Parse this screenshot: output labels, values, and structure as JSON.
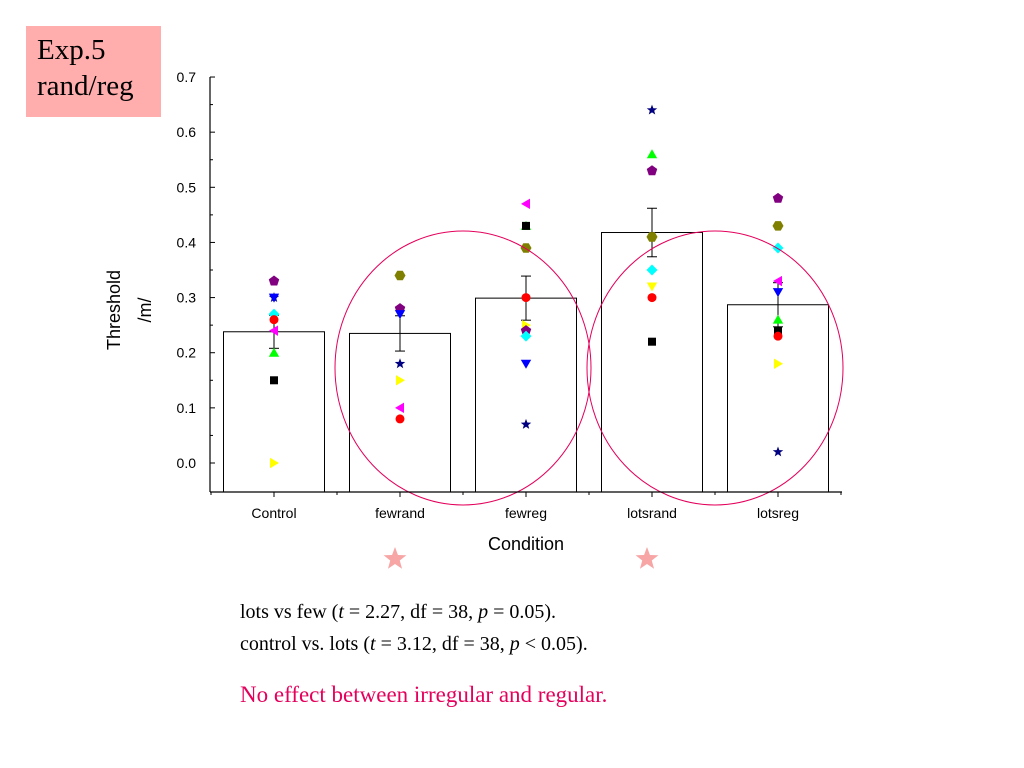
{
  "header_box": {
    "line1": "Exp.5",
    "line2": "rand/reg",
    "color": "#ffadad"
  },
  "chart_data": {
    "type": "bar",
    "title": "",
    "xlabel": "Condition",
    "ylabel_line1": "Threshold",
    "ylabel_line2": "/m/",
    "ylim": [
      -0.05,
      0.7
    ],
    "yticks": [
      "0.0",
      "0.1",
      "0.2",
      "0.3",
      "0.4",
      "0.5",
      "0.6",
      "0.7"
    ],
    "categories": [
      "Control",
      "fewrand",
      "fewreg",
      "lotsrand",
      "lotsreg"
    ],
    "values": [
      0.238,
      0.235,
      0.299,
      0.418,
      0.287
    ],
    "error": [
      0.03,
      0.032,
      0.04,
      0.044,
      0.04
    ],
    "grid": false,
    "points": [
      {
        "category": "Control",
        "marker": "triangle-up",
        "color": "#00ff00",
        "y": 0.2
      },
      {
        "category": "Control",
        "marker": "square",
        "color": "#000000",
        "y": 0.15
      },
      {
        "category": "Control",
        "marker": "triangle-right",
        "color": "#ffff00",
        "y": 0.0
      },
      {
        "category": "Control",
        "marker": "pentagon",
        "color": "#800080",
        "y": 0.33
      },
      {
        "category": "Control",
        "marker": "star",
        "color": "#000080",
        "y": 0.3
      },
      {
        "category": "Control",
        "marker": "triangle-down",
        "color": "#0000ff",
        "y": 0.3
      },
      {
        "category": "Control",
        "marker": "diamond",
        "color": "#00ffff",
        "y": 0.27
      },
      {
        "category": "Control",
        "marker": "circle",
        "color": "#ff0000",
        "y": 0.26
      },
      {
        "category": "Control",
        "marker": "triangle-left",
        "color": "#ff00ff",
        "y": 0.24
      },
      {
        "category": "fewrand",
        "marker": "hexagon",
        "color": "#808000",
        "y": 0.34
      },
      {
        "category": "fewrand",
        "marker": "pentagon",
        "color": "#800080",
        "y": 0.28
      },
      {
        "category": "fewrand",
        "marker": "triangle-down",
        "color": "#0000ff",
        "y": 0.27
      },
      {
        "category": "fewrand",
        "marker": "star",
        "color": "#000080",
        "y": 0.18
      },
      {
        "category": "fewrand",
        "marker": "triangle-right",
        "color": "#ffff00",
        "y": 0.15
      },
      {
        "category": "fewrand",
        "marker": "triangle-left",
        "color": "#ff00ff",
        "y": 0.1
      },
      {
        "category": "fewrand",
        "marker": "circle",
        "color": "#ff0000",
        "y": 0.08
      },
      {
        "category": "fewreg",
        "marker": "triangle-left",
        "color": "#ff00ff",
        "y": 0.47
      },
      {
        "category": "fewreg",
        "marker": "triangle-up",
        "color": "#00ff00",
        "y": 0.43
      },
      {
        "category": "fewreg",
        "marker": "square",
        "color": "#000000",
        "y": 0.43
      },
      {
        "category": "fewreg",
        "marker": "hexagon",
        "color": "#808000",
        "y": 0.39
      },
      {
        "category": "fewreg",
        "marker": "circle",
        "color": "#ff0000",
        "y": 0.3
      },
      {
        "category": "fewreg",
        "marker": "triangle-right",
        "color": "#ffff00",
        "y": 0.25
      },
      {
        "category": "fewreg",
        "marker": "pentagon",
        "color": "#800080",
        "y": 0.24
      },
      {
        "category": "fewreg",
        "marker": "diamond",
        "color": "#00ffff",
        "y": 0.23
      },
      {
        "category": "fewreg",
        "marker": "triangle-down",
        "color": "#0000ff",
        "y": 0.18
      },
      {
        "category": "fewreg",
        "marker": "star",
        "color": "#000080",
        "y": 0.07
      },
      {
        "category": "lotsrand",
        "marker": "star",
        "color": "#000080",
        "y": 0.64
      },
      {
        "category": "lotsrand",
        "marker": "triangle-up",
        "color": "#00ff00",
        "y": 0.56
      },
      {
        "category": "lotsrand",
        "marker": "pentagon",
        "color": "#800080",
        "y": 0.53
      },
      {
        "category": "lotsrand",
        "marker": "hexagon",
        "color": "#808000",
        "y": 0.41
      },
      {
        "category": "lotsrand",
        "marker": "diamond",
        "color": "#00ffff",
        "y": 0.35
      },
      {
        "category": "lotsrand",
        "marker": "triangle-down",
        "color": "#ffff00",
        "y": 0.32
      },
      {
        "category": "lotsrand",
        "marker": "circle",
        "color": "#ff0000",
        "y": 0.3
      },
      {
        "category": "lotsrand",
        "marker": "square",
        "color": "#000000",
        "y": 0.22
      },
      {
        "category": "lotsreg",
        "marker": "pentagon",
        "color": "#800080",
        "y": 0.48
      },
      {
        "category": "lotsreg",
        "marker": "hexagon",
        "color": "#808000",
        "y": 0.43
      },
      {
        "category": "lotsreg",
        "marker": "diamond",
        "color": "#00ffff",
        "y": 0.39
      },
      {
        "category": "lotsreg",
        "marker": "triangle-left",
        "color": "#ff00ff",
        "y": 0.33
      },
      {
        "category": "lotsreg",
        "marker": "triangle-down",
        "color": "#0000ff",
        "y": 0.31
      },
      {
        "category": "lotsreg",
        "marker": "triangle-up",
        "color": "#00ff00",
        "y": 0.26
      },
      {
        "category": "lotsreg",
        "marker": "square",
        "color": "#000000",
        "y": 0.24
      },
      {
        "category": "lotsreg",
        "marker": "circle",
        "color": "#ff0000",
        "y": 0.23
      },
      {
        "category": "lotsreg",
        "marker": "triangle-right",
        "color": "#ffff00",
        "y": 0.18
      },
      {
        "category": "lotsreg",
        "marker": "star",
        "color": "#000080",
        "y": 0.02
      }
    ],
    "circles": [
      {
        "label": "few",
        "categories": [
          "fewrand",
          "fewreg"
        ],
        "color": "#e4005b"
      },
      {
        "label": "lots",
        "categories": [
          "lotsrand",
          "lotsreg"
        ],
        "color": "#e4005b"
      }
    ],
    "significance_stars": [
      {
        "label": "few",
        "categories": [
          "fewrand",
          "fewreg"
        ],
        "glyph": "★",
        "color": "#f7a5a5"
      },
      {
        "label": "lots",
        "categories": [
          "lotsrand",
          "lotsreg"
        ],
        "glyph": "★",
        "color": "#f7a5a5"
      }
    ]
  },
  "stats": {
    "line1": {
      "pre": "lots vs few (",
      "t_label": "t",
      "t_text": " = 2.27, df = 38, ",
      "p_label": "p",
      "p_text": " = 0.05)."
    },
    "line2": {
      "pre": "control vs. lots (",
      "t_label": "t",
      "t_text": " = 3.12, df = 38, ",
      "p_label": "p",
      "p_text": " < 0.05)."
    }
  },
  "conclusion": {
    "text": "No effect between irregular and regular.",
    "color": "#e4005b"
  }
}
